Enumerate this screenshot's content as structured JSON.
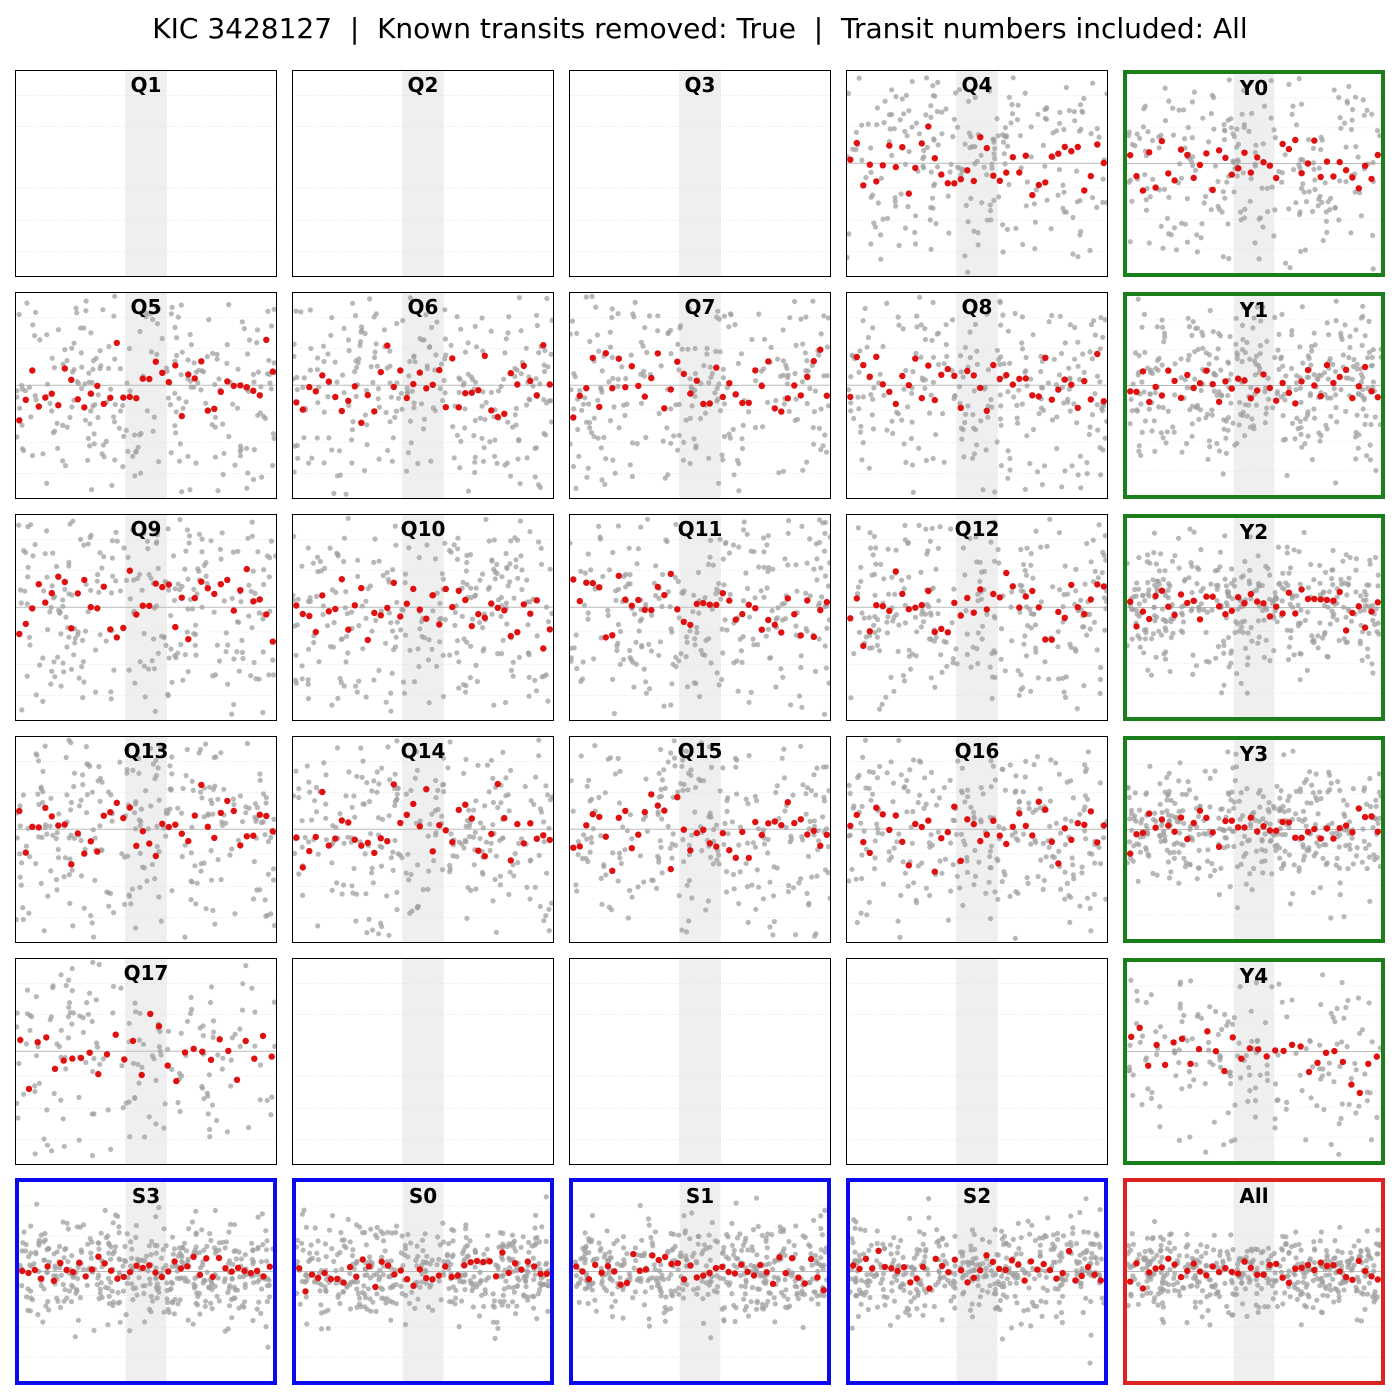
{
  "title": "KIC 3428127  |  Known transits removed: True  |  Transit numbers included: All",
  "colors": {
    "quarter_border": "#000000",
    "year_border": "#1a7f1a",
    "season_border": "#0a0aee",
    "all_border": "#dd2222",
    "raw_points": "#a0a0a0",
    "binned_points": "#e11010",
    "transit_window": "#e2e2e2",
    "gridline": "#dddddd",
    "zero_line": "#bbbbbb"
  },
  "chart_data": {
    "type": "scatter",
    "layout": "grid 6 rows x 5 columns of small-multiple folded light curves",
    "axes": "no tick labels; dotted horizontal gridlines; shaded central transit window; grey horizontal zero line",
    "panels": [
      {
        "label": "Q1",
        "group": "quarter",
        "has_data": false,
        "n_raw": 0,
        "n_binned": 0,
        "scatter": 0
      },
      {
        "label": "Q2",
        "group": "quarter",
        "has_data": false,
        "n_raw": 0,
        "n_binned": 0,
        "scatter": 0
      },
      {
        "label": "Q3",
        "group": "quarter",
        "has_data": false,
        "n_raw": 0,
        "n_binned": 0,
        "scatter": 0
      },
      {
        "label": "Q4",
        "group": "quarter",
        "has_data": true,
        "n_raw": 260,
        "n_binned": 40,
        "scatter": 1.0
      },
      {
        "label": "Y0",
        "group": "year",
        "has_data": true,
        "n_raw": 260,
        "n_binned": 40,
        "scatter": 1.0
      },
      {
        "label": "Q5",
        "group": "quarter",
        "has_data": true,
        "n_raw": 280,
        "n_binned": 40,
        "scatter": 1.0
      },
      {
        "label": "Q6",
        "group": "quarter",
        "has_data": true,
        "n_raw": 280,
        "n_binned": 40,
        "scatter": 1.0
      },
      {
        "label": "Q7",
        "group": "quarter",
        "has_data": true,
        "n_raw": 280,
        "n_binned": 40,
        "scatter": 1.0
      },
      {
        "label": "Q8",
        "group": "quarter",
        "has_data": true,
        "n_raw": 280,
        "n_binned": 40,
        "scatter": 1.0
      },
      {
        "label": "Y1",
        "group": "year",
        "has_data": true,
        "n_raw": 360,
        "n_binned": 40,
        "scatter": 0.7
      },
      {
        "label": "Q9",
        "group": "quarter",
        "has_data": true,
        "n_raw": 290,
        "n_binned": 40,
        "scatter": 1.0
      },
      {
        "label": "Q10",
        "group": "quarter",
        "has_data": true,
        "n_raw": 290,
        "n_binned": 40,
        "scatter": 1.0
      },
      {
        "label": "Q11",
        "group": "quarter",
        "has_data": true,
        "n_raw": 290,
        "n_binned": 40,
        "scatter": 1.0
      },
      {
        "label": "Q12",
        "group": "quarter",
        "has_data": true,
        "n_raw": 290,
        "n_binned": 40,
        "scatter": 1.0
      },
      {
        "label": "Y2",
        "group": "year",
        "has_data": true,
        "n_raw": 380,
        "n_binned": 40,
        "scatter": 0.6
      },
      {
        "label": "Q13",
        "group": "quarter",
        "has_data": true,
        "n_raw": 290,
        "n_binned": 40,
        "scatter": 1.0
      },
      {
        "label": "Q14",
        "group": "quarter",
        "has_data": true,
        "n_raw": 290,
        "n_binned": 40,
        "scatter": 1.0
      },
      {
        "label": "Q15",
        "group": "quarter",
        "has_data": true,
        "n_raw": 290,
        "n_binned": 40,
        "scatter": 1.0
      },
      {
        "label": "Q16",
        "group": "quarter",
        "has_data": true,
        "n_raw": 290,
        "n_binned": 40,
        "scatter": 1.0
      },
      {
        "label": "Y3",
        "group": "year",
        "has_data": true,
        "n_raw": 380,
        "n_binned": 40,
        "scatter": 0.6
      },
      {
        "label": "Q17",
        "group": "quarter",
        "has_data": true,
        "n_raw": 180,
        "n_binned": 30,
        "scatter": 1.0
      },
      {
        "label": "",
        "group": "quarter",
        "has_data": false,
        "n_raw": 0,
        "n_binned": 0,
        "scatter": 0
      },
      {
        "label": "",
        "group": "quarter",
        "has_data": false,
        "n_raw": 0,
        "n_binned": 0,
        "scatter": 0
      },
      {
        "label": "",
        "group": "quarter",
        "has_data": false,
        "n_raw": 0,
        "n_binned": 0,
        "scatter": 0
      },
      {
        "label": "Y4",
        "group": "year",
        "has_data": true,
        "n_raw": 200,
        "n_binned": 30,
        "scatter": 1.0
      },
      {
        "label": "S3",
        "group": "season",
        "has_data": true,
        "n_raw": 420,
        "n_binned": 40,
        "scatter": 0.45
      },
      {
        "label": "S0",
        "group": "season",
        "has_data": true,
        "n_raw": 420,
        "n_binned": 40,
        "scatter": 0.45
      },
      {
        "label": "S1",
        "group": "season",
        "has_data": true,
        "n_raw": 420,
        "n_binned": 40,
        "scatter": 0.45
      },
      {
        "label": "S2",
        "group": "season",
        "has_data": true,
        "n_raw": 420,
        "n_binned": 40,
        "scatter": 0.45
      },
      {
        "label": "All",
        "group": "all",
        "has_data": true,
        "n_raw": 440,
        "n_binned": 40,
        "scatter": 0.35
      }
    ]
  }
}
